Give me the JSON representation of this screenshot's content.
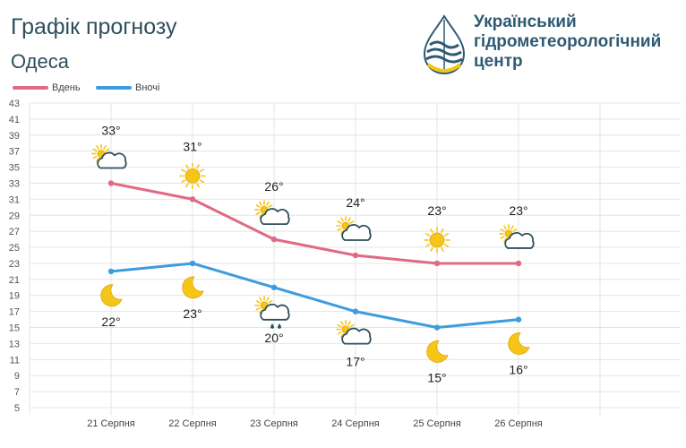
{
  "header": {
    "title": "Графік прогнозу",
    "city": "Одеса"
  },
  "organization": {
    "line1": "Український",
    "line2": "гідрометеорологічний",
    "line3": "центр"
  },
  "colors": {
    "day": "#e06a85",
    "night": "#3d9ddc",
    "text_dark": "#2d4f5c",
    "sun": "#f5c518"
  },
  "chart_data": {
    "type": "line",
    "categories": [
      "21 Серпня",
      "22 Серпня",
      "23 Серпня",
      "24 Серпня",
      "25 Серпня",
      "26 Серпня"
    ],
    "series": [
      {
        "name": "Вдень",
        "values": [
          33,
          31,
          26,
          24,
          23,
          23
        ],
        "labels": [
          "33°",
          "31°",
          "26°",
          "24°",
          "23°",
          "23°"
        ],
        "icons": [
          "partly-cloudy-icon",
          "sun-icon",
          "partly-cloudy-icon",
          "partly-cloudy-icon",
          "sun-icon",
          "partly-cloudy-icon"
        ]
      },
      {
        "name": "Вночі",
        "values": [
          22,
          23,
          20,
          17,
          15,
          16
        ],
        "labels": [
          "22°",
          "23°",
          "20°",
          "17°",
          "15°",
          "16°"
        ],
        "icons": [
          "moon-icon",
          "moon-icon",
          "partly-cloudy-rain-icon",
          "partly-cloudy-icon",
          "moon-icon",
          "moon-icon"
        ]
      }
    ],
    "y_ticks": [
      "5",
      "7",
      "9",
      "11",
      "13",
      "15",
      "17",
      "19",
      "21",
      "23",
      "25",
      "27",
      "29",
      "31",
      "33",
      "35",
      "37",
      "39",
      "41",
      "43"
    ],
    "ylim": [
      5,
      43
    ],
    "grid": true,
    "legend_position": "top-left"
  }
}
